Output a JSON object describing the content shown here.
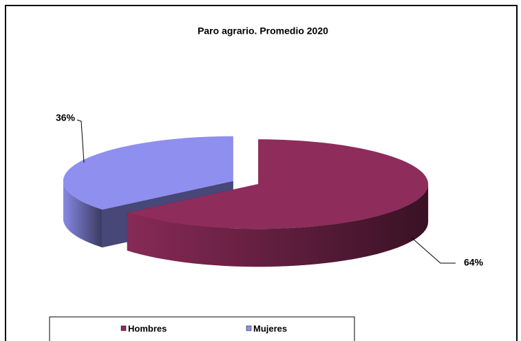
{
  "chart_data": {
    "type": "pie",
    "title": "Paro agrario. Promedio 2020",
    "categories": [
      "Hombres",
      "Mujeres"
    ],
    "values": [
      64,
      36
    ],
    "value_labels": [
      "64%",
      "36%"
    ],
    "colors": [
      "#8e2c5b",
      "#8f8ff0"
    ],
    "legend": "bottom"
  }
}
